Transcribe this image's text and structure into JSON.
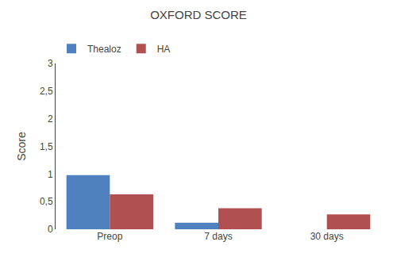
{
  "chart_data": {
    "type": "bar",
    "title": "OXFORD SCORE",
    "ylabel": "Score",
    "categories": [
      "Preop",
      "7 days",
      "30 days"
    ],
    "series": [
      {
        "name": "Thealoz",
        "color": "#4E81BD",
        "values": [
          0.98,
          0.12,
          0.0
        ]
      },
      {
        "name": "HA",
        "color": "#B05050",
        "values": [
          0.63,
          0.38,
          0.27
        ]
      }
    ],
    "ylim": [
      0,
      3
    ],
    "yticks": [
      0,
      {
        "value": 0.5,
        "label": "0,5"
      },
      1,
      {
        "value": 1.5,
        "label": "1,5"
      },
      2,
      {
        "value": 2.5,
        "label": "2,5"
      },
      3
    ],
    "grid": false,
    "legend": "top left"
  }
}
